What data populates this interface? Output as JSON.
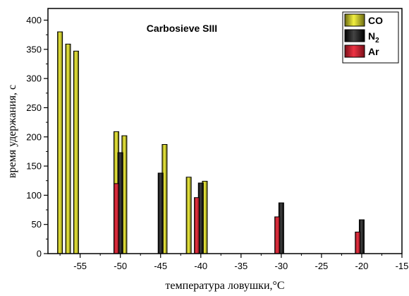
{
  "chart_data": {
    "type": "bar",
    "title": "Carbosieve SIII",
    "xlabel": "температура ловушки,°C",
    "ylabel": "время удержания, с",
    "xlim": [
      -59,
      -15
    ],
    "ylim": [
      0,
      420
    ],
    "x_ticks": [
      -55,
      -50,
      -45,
      -40,
      -35,
      -30,
      -25,
      -20,
      -15
    ],
    "y_ticks": [
      0,
      50,
      100,
      150,
      200,
      250,
      300,
      350,
      400
    ],
    "grid": false,
    "legend_position": "top-right",
    "series": [
      {
        "name": "CO",
        "color": "#e8e62a",
        "points": [
          {
            "x": -57.5,
            "y": 380
          },
          {
            "x": -56.5,
            "y": 359
          },
          {
            "x": -55.5,
            "y": 347
          },
          {
            "x": -50.5,
            "y": 209
          },
          {
            "x": -49.5,
            "y": 202
          },
          {
            "x": -44.5,
            "y": 187
          },
          {
            "x": -41.5,
            "y": 131
          },
          {
            "x": -39.5,
            "y": 124
          }
        ]
      },
      {
        "name": "N",
        "name_subscript": "2",
        "color": "#1a1a1a",
        "points": [
          {
            "x": -50,
            "y": 173
          },
          {
            "x": -45,
            "y": 138
          },
          {
            "x": -40,
            "y": 121
          },
          {
            "x": -30,
            "y": 87
          },
          {
            "x": -20,
            "y": 58
          }
        ]
      },
      {
        "name": "Ar",
        "color": "#e0283a",
        "points": [
          {
            "x": -50.5,
            "y": 120
          },
          {
            "x": -40.5,
            "y": 96
          },
          {
            "x": -30.5,
            "y": 63
          },
          {
            "x": -20.5,
            "y": 37
          }
        ]
      }
    ]
  }
}
